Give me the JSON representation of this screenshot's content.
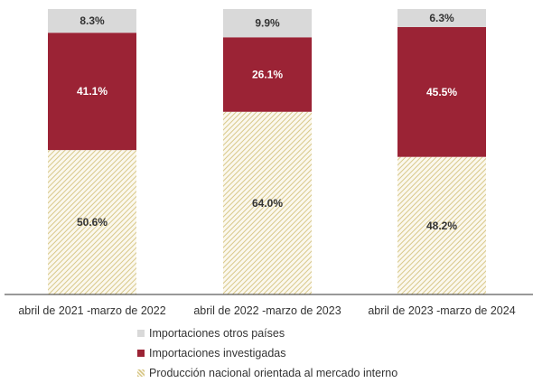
{
  "chart_data": {
    "type": "bar",
    "stacked": true,
    "percent_stacked": true,
    "categories": [
      "abril de 2021 -marzo de 2022",
      "abril de 2022 -marzo de 2023",
      "abril de 2023 -marzo de 2024"
    ],
    "series": [
      {
        "name": "Producción nacional orientada al mercado interno",
        "values": [
          50.6,
          64.0,
          48.2
        ],
        "labels": [
          "50.6%",
          "64.0%",
          "48.2%"
        ],
        "color": "#e8dca8",
        "pattern": "diagonal-hatch"
      },
      {
        "name": "Importaciones investigadas",
        "values": [
          41.1,
          26.1,
          45.5
        ],
        "labels": [
          "41.1%",
          "26.1%",
          "45.5%"
        ],
        "color": "#9b2335"
      },
      {
        "name": "Importaciones otros países",
        "values": [
          8.3,
          9.9,
          6.3
        ],
        "labels": [
          "8.3%",
          "9.9%",
          "6.3%"
        ],
        "color": "#d9d9d9"
      }
    ],
    "ylim": [
      0,
      100
    ],
    "grid": false,
    "legend_position": "bottom",
    "title": "",
    "xlabel": "",
    "ylabel": ""
  },
  "legend": [
    {
      "label": "Importaciones otros países",
      "color": "#d9d9d9"
    },
    {
      "label": "Importaciones investigadas",
      "color": "#9b2335"
    },
    {
      "label": "Producción nacional orientada al mercado interno",
      "color": "#e8dca8"
    }
  ]
}
